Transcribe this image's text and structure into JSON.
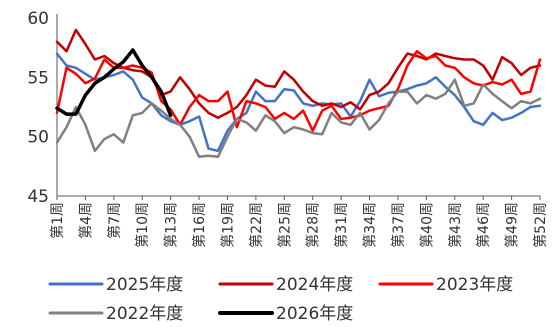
{
  "chart_data": {
    "type": "line",
    "ylim": [
      45,
      60
    ],
    "yticks": [
      "45",
      "50",
      "55",
      "60"
    ],
    "xticks": [
      "第1周",
      "第4周",
      "第7周",
      "第10周",
      "第13周",
      "第16周",
      "第19周",
      "第22周",
      "第25周",
      "第28周",
      "第31周",
      "第34周",
      "第37周",
      "第40周",
      "第43周",
      "第46周",
      "第49周",
      "第52周"
    ],
    "grid": false,
    "legend_position": "bottom",
    "series": [
      {
        "name": "2025年度",
        "color": "#4472C4",
        "x": [
          1,
          2,
          3,
          4,
          5,
          6,
          7,
          8,
          9,
          10,
          11,
          12,
          13,
          14,
          15,
          16,
          17,
          18,
          19,
          20,
          21,
          22,
          23,
          24,
          25,
          26,
          27,
          28,
          29,
          30,
          31,
          32,
          33,
          34,
          35,
          36,
          37,
          38,
          39,
          40,
          41,
          42,
          43,
          44,
          45,
          46,
          47,
          48,
          49,
          50,
          51,
          52
        ],
        "values": [
          57.0,
          56.0,
          55.8,
          55.3,
          54.8,
          55.0,
          55.2,
          55.5,
          54.8,
          53.3,
          52.8,
          51.8,
          51.3,
          51.0,
          51.3,
          51.7,
          49.0,
          48.8,
          50.5,
          51.5,
          52.0,
          53.8,
          53.0,
          53.0,
          54.0,
          53.9,
          52.8,
          52.6,
          52.8,
          52.7,
          52.8,
          51.7,
          53.0,
          54.8,
          53.4,
          53.7,
          53.8,
          54.0,
          54.3,
          54.5,
          55.0,
          54.2,
          53.5,
          52.5,
          51.3,
          51.0,
          52.0,
          51.4,
          51.6,
          52.0,
          52.5,
          52.6
        ]
      },
      {
        "name": "2024年度",
        "color": "#C00000",
        "x": [
          1,
          2,
          3,
          4,
          5,
          6,
          7,
          8,
          9,
          10,
          11,
          12,
          13,
          14,
          15,
          16,
          17,
          18,
          19,
          20,
          21,
          22,
          23,
          24,
          25,
          26,
          27,
          28,
          29,
          30,
          31,
          32,
          33,
          34,
          35,
          36,
          37,
          38,
          39,
          40,
          41,
          42,
          43,
          44,
          45,
          46,
          47,
          48,
          49,
          50,
          51,
          52
        ],
        "values": [
          58.0,
          57.2,
          59.0,
          57.8,
          56.5,
          56.8,
          56.2,
          55.8,
          55.6,
          55.5,
          55.0,
          53.5,
          53.8,
          55.0,
          54.0,
          52.8,
          52.0,
          51.6,
          52.0,
          52.5,
          53.5,
          54.8,
          54.3,
          54.2,
          55.5,
          54.8,
          53.8,
          53.0,
          52.6,
          52.8,
          52.5,
          52.9,
          52.3,
          53.5,
          53.8,
          54.5,
          55.8,
          57.0,
          56.8,
          56.5,
          57.0,
          56.8,
          56.6,
          56.5,
          56.5,
          56.0,
          54.8,
          56.7,
          56.2,
          55.2,
          55.8,
          56.0
        ]
      },
      {
        "name": "2023年度",
        "color": "#FF0000",
        "x": [
          1,
          2,
          3,
          4,
          5,
          6,
          7,
          8,
          9,
          10,
          11,
          12,
          13,
          14,
          15,
          16,
          17,
          18,
          19,
          20,
          21,
          22,
          23,
          24,
          25,
          26,
          27,
          28,
          29,
          30,
          31,
          32,
          33,
          34,
          35,
          36,
          37,
          38,
          39,
          40,
          41,
          42,
          43,
          44,
          45,
          46,
          47,
          48,
          49,
          50,
          51,
          52
        ],
        "values": [
          52.0,
          55.8,
          55.3,
          54.5,
          54.9,
          56.5,
          55.8,
          55.8,
          56.0,
          55.8,
          55.4,
          53.0,
          52.3,
          51.0,
          52.5,
          53.5,
          53.0,
          53.0,
          53.8,
          50.8,
          53.0,
          52.8,
          52.5,
          51.5,
          52.0,
          51.5,
          52.2,
          50.5,
          52.2,
          52.6,
          51.5,
          51.6,
          51.8,
          52.2,
          52.4,
          52.6,
          54.0,
          56.0,
          57.2,
          56.6,
          56.8,
          56.0,
          55.8,
          55.0,
          54.5,
          54.3,
          54.6,
          54.4,
          54.8,
          53.6,
          53.8,
          56.5
        ]
      },
      {
        "name": "2022年度",
        "color": "#808080",
        "x": [
          1,
          2,
          3,
          4,
          5,
          6,
          7,
          8,
          9,
          10,
          11,
          12,
          13,
          14,
          15,
          16,
          17,
          18,
          19,
          20,
          21,
          22,
          23,
          24,
          25,
          26,
          27,
          28,
          29,
          30,
          31,
          32,
          33,
          34,
          35,
          36,
          37,
          38,
          39,
          40,
          41,
          42,
          43,
          44,
          45,
          46,
          47,
          48,
          49,
          50,
          51,
          52
        ],
        "values": [
          49.5,
          50.8,
          52.5,
          51.0,
          48.8,
          49.8,
          50.2,
          49.5,
          51.8,
          52.0,
          52.8,
          52.2,
          51.5,
          51.0,
          50.0,
          48.3,
          48.4,
          48.3,
          50.0,
          51.5,
          51.2,
          50.5,
          51.8,
          51.3,
          50.3,
          50.8,
          50.6,
          50.3,
          50.2,
          52.0,
          51.2,
          51.0,
          52.0,
          50.6,
          51.4,
          52.8,
          53.8,
          53.8,
          52.8,
          53.5,
          53.2,
          53.6,
          54.8,
          52.6,
          52.8,
          54.4,
          53.6,
          53.0,
          52.4,
          53.0,
          52.8,
          53.2
        ]
      },
      {
        "name": "2026年度",
        "color": "#000000",
        "x": [
          1,
          2,
          3,
          4,
          5,
          6,
          7,
          8,
          9,
          10,
          11,
          12,
          13
        ],
        "values": [
          52.4,
          51.9,
          51.9,
          53.5,
          54.5,
          55.0,
          55.7,
          56.3,
          57.3,
          56.0,
          55.0,
          53.8,
          51.8
        ]
      }
    ]
  }
}
